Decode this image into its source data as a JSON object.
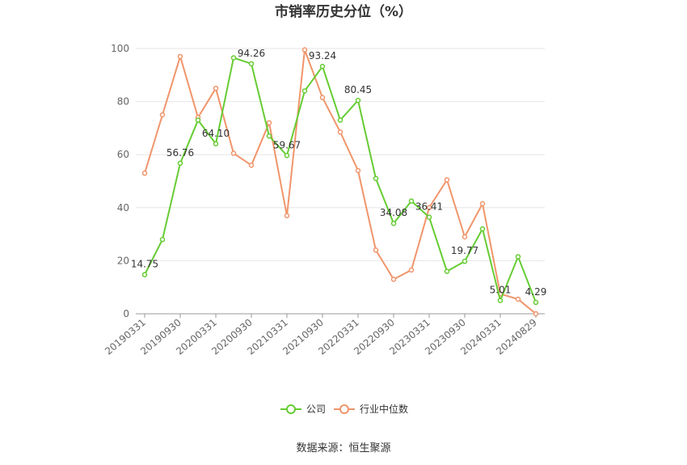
{
  "chart_data": {
    "type": "line",
    "title": "市销率历史分位（%）",
    "ylim": [
      0,
      100
    ],
    "yticks": [
      0,
      20,
      40,
      60,
      80,
      100
    ],
    "grid": true,
    "legend_position": "bottom",
    "x": [
      "20190331",
      "20190630",
      "20190930",
      "20191231",
      "20200331",
      "20200630",
      "20200930",
      "20201231",
      "20210331",
      "20210630",
      "20210930",
      "20211231",
      "20220331",
      "20220630",
      "20220930",
      "20221231",
      "20230331",
      "20230630",
      "20230930",
      "20231231",
      "20240331",
      "20240630",
      "20240829"
    ],
    "xtick_labels": [
      "20190331",
      "20190930",
      "20200331",
      "20200930",
      "20210331",
      "20210930",
      "20220331",
      "20220930",
      "20230331",
      "20230930",
      "20240331",
      "20240829"
    ],
    "series": [
      {
        "name": "公司",
        "color": "#66cc33",
        "values": [
          14.75,
          28.0,
          56.76,
          73.0,
          64.1,
          96.5,
          94.26,
          67.0,
          59.67,
          84.0,
          93.24,
          73.0,
          80.45,
          51.0,
          34.08,
          42.5,
          36.41,
          16.0,
          19.77,
          32.0,
          5.01,
          21.5,
          4.29
        ],
        "labels": [
          "14.75",
          null,
          "56.76",
          null,
          "64.10",
          null,
          "94.26",
          null,
          "59.67",
          null,
          "93.24",
          null,
          "80.45",
          null,
          "34.08",
          null,
          "36.41",
          null,
          "19.77",
          null,
          "5.01",
          null,
          "4.29"
        ]
      },
      {
        "name": "行业中位数",
        "color": "#f0956b",
        "values": [
          53.0,
          75.0,
          97.0,
          74.0,
          85.0,
          60.5,
          56.0,
          72.0,
          37.0,
          99.5,
          81.5,
          68.5,
          54.0,
          24.0,
          13.0,
          16.5,
          40.0,
          50.5,
          29.0,
          41.5,
          7.5,
          5.5,
          0.0
        ],
        "labels": []
      }
    ]
  },
  "legend": {
    "company": "公司",
    "industry": "行业中位数"
  },
  "source_text": "数据来源：恒生聚源"
}
